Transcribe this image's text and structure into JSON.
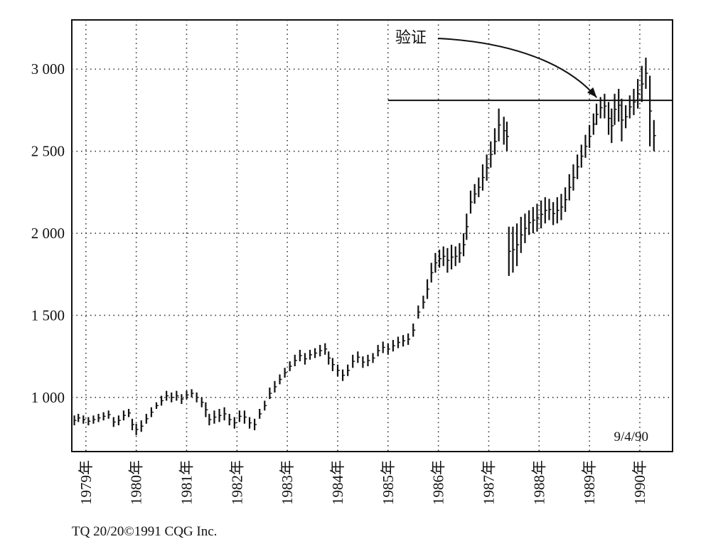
{
  "chart_data": {
    "type": "bar",
    "subtype": "weekly-ohlc-price-bars",
    "title": "",
    "xlabel": "",
    "ylabel": "",
    "ylim": [
      670,
      3300
    ],
    "y_ticks": [
      1000,
      1500,
      2000,
      2500,
      3000
    ],
    "y_tick_labels": [
      "1 000",
      "1 500",
      "2 000",
      "2 500",
      "3 000"
    ],
    "x_range": [
      1978.72,
      1990.65
    ],
    "x_ticks": [
      1979,
      1980,
      1981,
      1982,
      1983,
      1984,
      1985,
      1986,
      1987,
      1988,
      1989,
      1990
    ],
    "x_tick_labels": [
      "1979年",
      "1980年",
      "1981年",
      "1982年",
      "1983年",
      "1984年",
      "1985年",
      "1986年",
      "1987年",
      "1988年",
      "1989年",
      "1990年"
    ],
    "grid": true,
    "legend": "none",
    "date_stamp": "9/4/90",
    "annotation": {
      "text": "验证",
      "points_to": [
        1989.2,
        2810
      ]
    },
    "horizontal_line": {
      "y": 2810,
      "x_from": 1985.0
    },
    "series": [
      {
        "bar_fields": [
          "x",
          "high",
          "low"
        ],
        "bars": [
          [
            1978.77,
            890,
            830
          ],
          [
            1978.85,
            900,
            850
          ],
          [
            1978.95,
            890,
            840
          ],
          [
            1979.05,
            880,
            830
          ],
          [
            1979.15,
            890,
            840
          ],
          [
            1979.25,
            900,
            850
          ],
          [
            1979.35,
            910,
            860
          ],
          [
            1979.45,
            920,
            870
          ],
          [
            1979.55,
            880,
            820
          ],
          [
            1979.65,
            890,
            830
          ],
          [
            1979.75,
            920,
            860
          ],
          [
            1979.85,
            930,
            880
          ],
          [
            1979.92,
            870,
            800
          ],
          [
            1980.0,
            840,
            770
          ],
          [
            1980.1,
            860,
            790
          ],
          [
            1980.2,
            900,
            840
          ],
          [
            1980.3,
            940,
            880
          ],
          [
            1980.4,
            970,
            930
          ],
          [
            1980.5,
            1010,
            950
          ],
          [
            1980.6,
            1040,
            980
          ],
          [
            1980.7,
            1030,
            970
          ],
          [
            1980.8,
            1040,
            980
          ],
          [
            1980.9,
            1020,
            960
          ],
          [
            1981.0,
            1040,
            990
          ],
          [
            1981.1,
            1050,
            1000
          ],
          [
            1981.2,
            1030,
            970
          ],
          [
            1981.3,
            1000,
            940
          ],
          [
            1981.38,
            970,
            880
          ],
          [
            1981.45,
            900,
            830
          ],
          [
            1981.55,
            920,
            840
          ],
          [
            1981.65,
            930,
            850
          ],
          [
            1981.75,
            940,
            860
          ],
          [
            1981.85,
            900,
            830
          ],
          [
            1981.95,
            880,
            810
          ],
          [
            1982.05,
            920,
            850
          ],
          [
            1982.15,
            920,
            840
          ],
          [
            1982.25,
            880,
            810
          ],
          [
            1982.35,
            870,
            800
          ],
          [
            1982.45,
            930,
            870
          ],
          [
            1982.55,
            980,
            920
          ],
          [
            1982.65,
            1060,
            990
          ],
          [
            1982.75,
            1100,
            1030
          ],
          [
            1982.85,
            1140,
            1080
          ],
          [
            1982.95,
            1180,
            1120
          ],
          [
            1983.05,
            1220,
            1160
          ],
          [
            1983.15,
            1260,
            1190
          ],
          [
            1983.25,
            1290,
            1220
          ],
          [
            1983.35,
            1270,
            1200
          ],
          [
            1983.45,
            1290,
            1230
          ],
          [
            1983.55,
            1300,
            1240
          ],
          [
            1983.65,
            1320,
            1250
          ],
          [
            1983.75,
            1330,
            1260
          ],
          [
            1983.82,
            1280,
            1200
          ],
          [
            1983.9,
            1240,
            1160
          ],
          [
            1984.0,
            1200,
            1130
          ],
          [
            1984.1,
            1170,
            1100
          ],
          [
            1984.2,
            1200,
            1130
          ],
          [
            1984.3,
            1260,
            1180
          ],
          [
            1984.4,
            1280,
            1210
          ],
          [
            1984.5,
            1250,
            1180
          ],
          [
            1984.6,
            1260,
            1190
          ],
          [
            1984.7,
            1270,
            1210
          ],
          [
            1984.8,
            1320,
            1250
          ],
          [
            1984.9,
            1340,
            1270
          ],
          [
            1985.0,
            1330,
            1260
          ],
          [
            1985.1,
            1350,
            1280
          ],
          [
            1985.2,
            1370,
            1300
          ],
          [
            1985.3,
            1380,
            1310
          ],
          [
            1985.4,
            1390,
            1320
          ],
          [
            1985.5,
            1450,
            1370
          ],
          [
            1985.6,
            1560,
            1480
          ],
          [
            1985.7,
            1620,
            1540
          ],
          [
            1985.78,
            1720,
            1600
          ],
          [
            1985.86,
            1820,
            1700
          ],
          [
            1985.94,
            1880,
            1760
          ],
          [
            1986.02,
            1900,
            1790
          ],
          [
            1986.1,
            1920,
            1800
          ],
          [
            1986.18,
            1910,
            1760
          ],
          [
            1986.26,
            1930,
            1780
          ],
          [
            1986.34,
            1920,
            1800
          ],
          [
            1986.42,
            1940,
            1820
          ],
          [
            1986.5,
            2000,
            1860
          ],
          [
            1986.56,
            2120,
            1960
          ],
          [
            1986.64,
            2260,
            2120
          ],
          [
            1986.72,
            2300,
            2180
          ],
          [
            1986.8,
            2340,
            2220
          ],
          [
            1986.88,
            2420,
            2260
          ],
          [
            1986.96,
            2480,
            2320
          ],
          [
            1987.04,
            2560,
            2400
          ],
          [
            1987.12,
            2640,
            2480
          ],
          [
            1987.2,
            2760,
            2560
          ],
          [
            1987.3,
            2710,
            2540
          ],
          [
            1987.36,
            2680,
            2500
          ],
          [
            1987.4,
            2040,
            1740
          ],
          [
            1987.48,
            2040,
            1760
          ],
          [
            1987.56,
            2060,
            1800
          ],
          [
            1987.64,
            2100,
            1880
          ],
          [
            1987.72,
            2120,
            1940
          ],
          [
            1987.8,
            2140,
            1990
          ],
          [
            1987.88,
            2160,
            2000
          ],
          [
            1987.96,
            2180,
            2010
          ],
          [
            1988.04,
            2200,
            2030
          ],
          [
            1988.12,
            2220,
            2060
          ],
          [
            1988.2,
            2210,
            2080
          ],
          [
            1988.28,
            2190,
            2050
          ],
          [
            1988.36,
            2220,
            2060
          ],
          [
            1988.44,
            2240,
            2080
          ],
          [
            1988.52,
            2280,
            2130
          ],
          [
            1988.6,
            2360,
            2200
          ],
          [
            1988.68,
            2420,
            2260
          ],
          [
            1988.76,
            2480,
            2330
          ],
          [
            1988.84,
            2540,
            2400
          ],
          [
            1988.92,
            2600,
            2460
          ],
          [
            1989.0,
            2660,
            2520
          ],
          [
            1989.08,
            2730,
            2600
          ],
          [
            1989.14,
            2790,
            2660
          ],
          [
            1989.22,
            2830,
            2700
          ],
          [
            1989.3,
            2850,
            2700
          ],
          [
            1989.38,
            2800,
            2600
          ],
          [
            1989.44,
            2760,
            2550
          ],
          [
            1989.5,
            2850,
            2660
          ],
          [
            1989.58,
            2880,
            2680
          ],
          [
            1989.64,
            2820,
            2560
          ],
          [
            1989.72,
            2780,
            2640
          ],
          [
            1989.8,
            2840,
            2700
          ],
          [
            1989.88,
            2880,
            2720
          ],
          [
            1989.96,
            2940,
            2760
          ],
          [
            1990.04,
            3020,
            2800
          ],
          [
            1990.12,
            3070,
            2880
          ],
          [
            1990.2,
            2960,
            2530
          ],
          [
            1990.28,
            2690,
            2500
          ]
        ]
      }
    ]
  },
  "footer": {
    "credit": "TQ 20/20©1991 CQG Inc."
  }
}
